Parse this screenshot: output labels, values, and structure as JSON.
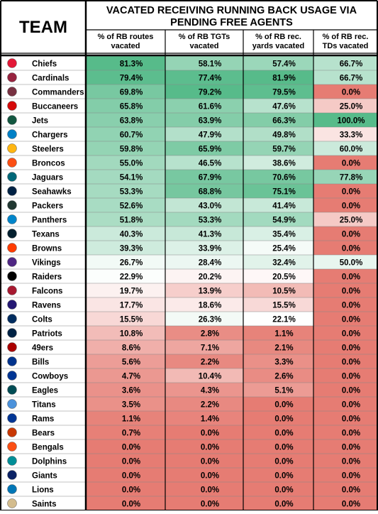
{
  "chart_data": {
    "type": "table",
    "title": "VACATED RECEIVING RUNNING BACK USAGE VIA PENDING FREE AGENTS",
    "title_lines": [
      "VACATED RECEIVING RUNNING BACK USAGE VIA",
      "PENDING FREE AGENTS"
    ],
    "team_header": "TEAM",
    "columns": [
      {
        "key": "routes",
        "lines": [
          "% of RB routes",
          "vacated"
        ]
      },
      {
        "key": "tgts",
        "lines": [
          "% of RB TGTs",
          "vacated"
        ]
      },
      {
        "key": "yards",
        "lines": [
          "% of RB rec.",
          "yards vacated"
        ]
      },
      {
        "key": "tds",
        "lines": [
          "% of RB rec.",
          "TDs vacated"
        ]
      }
    ],
    "rows": [
      {
        "team": "Chiefs",
        "logo_color": "#E31837",
        "routes": "81.3%",
        "tgts": "58.1%",
        "yards": "57.4%",
        "tds": "66.7%"
      },
      {
        "team": "Cardinals",
        "logo_color": "#97233F",
        "routes": "79.4%",
        "tgts": "77.4%",
        "yards": "81.9%",
        "tds": "66.7%"
      },
      {
        "team": "Commanders",
        "logo_color": "#773141",
        "routes": "69.8%",
        "tgts": "79.2%",
        "yards": "79.5%",
        "tds": "0.0%"
      },
      {
        "team": "Buccaneers",
        "logo_color": "#D50A0A",
        "routes": "65.8%",
        "tgts": "61.6%",
        "yards": "47.6%",
        "tds": "25.0%"
      },
      {
        "team": "Jets",
        "logo_color": "#125740",
        "routes": "63.8%",
        "tgts": "63.9%",
        "yards": "66.3%",
        "tds": "100.0%"
      },
      {
        "team": "Chargers",
        "logo_color": "#0080C6",
        "routes": "60.7%",
        "tgts": "47.9%",
        "yards": "49.8%",
        "tds": "33.3%"
      },
      {
        "team": "Steelers",
        "logo_color": "#FFB612",
        "routes": "59.8%",
        "tgts": "65.9%",
        "yards": "59.7%",
        "tds": "60.0%"
      },
      {
        "team": "Broncos",
        "logo_color": "#FB4F14",
        "routes": "55.0%",
        "tgts": "46.5%",
        "yards": "38.6%",
        "tds": "0.0%"
      },
      {
        "team": "Jaguars",
        "logo_color": "#006778",
        "routes": "54.1%",
        "tgts": "67.9%",
        "yards": "70.6%",
        "tds": "77.8%"
      },
      {
        "team": "Seahawks",
        "logo_color": "#002244",
        "routes": "53.3%",
        "tgts": "68.8%",
        "yards": "75.1%",
        "tds": "0.0%"
      },
      {
        "team": "Packers",
        "logo_color": "#203731",
        "routes": "52.6%",
        "tgts": "43.0%",
        "yards": "41.4%",
        "tds": "0.0%"
      },
      {
        "team": "Panthers",
        "logo_color": "#0085CA",
        "routes": "51.8%",
        "tgts": "53.3%",
        "yards": "54.9%",
        "tds": "25.0%"
      },
      {
        "team": "Texans",
        "logo_color": "#03202F",
        "routes": "40.3%",
        "tgts": "41.3%",
        "yards": "35.4%",
        "tds": "0.0%"
      },
      {
        "team": "Browns",
        "logo_color": "#FF3C00",
        "routes": "39.3%",
        "tgts": "33.9%",
        "yards": "25.4%",
        "tds": "0.0%"
      },
      {
        "team": "Vikings",
        "logo_color": "#4F2683",
        "routes": "26.7%",
        "tgts": "28.4%",
        "yards": "32.4%",
        "tds": "50.0%"
      },
      {
        "team": "Raiders",
        "logo_color": "#000000",
        "routes": "22.9%",
        "tgts": "20.2%",
        "yards": "20.5%",
        "tds": "0.0%"
      },
      {
        "team": "Falcons",
        "logo_color": "#A71930",
        "routes": "19.7%",
        "tgts": "13.9%",
        "yards": "10.5%",
        "tds": "0.0%"
      },
      {
        "team": "Ravens",
        "logo_color": "#241773",
        "routes": "17.7%",
        "tgts": "18.6%",
        "yards": "15.5%",
        "tds": "0.0%"
      },
      {
        "team": "Colts",
        "logo_color": "#002C5F",
        "routes": "15.5%",
        "tgts": "26.3%",
        "yards": "22.1%",
        "tds": "0.0%"
      },
      {
        "team": "Patriots",
        "logo_color": "#002244",
        "routes": "10.8%",
        "tgts": "2.8%",
        "yards": "1.1%",
        "tds": "0.0%"
      },
      {
        "team": "49ers",
        "logo_color": "#AA0000",
        "routes": "8.6%",
        "tgts": "7.1%",
        "yards": "2.1%",
        "tds": "0.0%"
      },
      {
        "team": "Bills",
        "logo_color": "#00338D",
        "routes": "5.6%",
        "tgts": "2.2%",
        "yards": "3.3%",
        "tds": "0.0%"
      },
      {
        "team": "Cowboys",
        "logo_color": "#003594",
        "routes": "4.7%",
        "tgts": "10.4%",
        "yards": "2.6%",
        "tds": "0.0%"
      },
      {
        "team": "Eagles",
        "logo_color": "#004C54",
        "routes": "3.6%",
        "tgts": "4.3%",
        "yards": "5.1%",
        "tds": "0.0%"
      },
      {
        "team": "Titans",
        "logo_color": "#4B92DB",
        "routes": "3.5%",
        "tgts": "2.2%",
        "yards": "0.0%",
        "tds": "0.0%"
      },
      {
        "team": "Rams",
        "logo_color": "#003594",
        "routes": "1.1%",
        "tgts": "1.4%",
        "yards": "0.0%",
        "tds": "0.0%"
      },
      {
        "team": "Bears",
        "logo_color": "#C83803",
        "routes": "0.7%",
        "tgts": "0.0%",
        "yards": "0.0%",
        "tds": "0.0%"
      },
      {
        "team": "Bengals",
        "logo_color": "#FB4F14",
        "routes": "0.0%",
        "tgts": "0.0%",
        "yards": "0.0%",
        "tds": "0.0%"
      },
      {
        "team": "Dolphins",
        "logo_color": "#008E97",
        "routes": "0.0%",
        "tgts": "0.0%",
        "yards": "0.0%",
        "tds": "0.0%"
      },
      {
        "team": "Giants",
        "logo_color": "#0B2265",
        "routes": "0.0%",
        "tgts": "0.0%",
        "yards": "0.0%",
        "tds": "0.0%"
      },
      {
        "team": "Lions",
        "logo_color": "#0076B6",
        "routes": "0.0%",
        "tgts": "0.0%",
        "yards": "0.0%",
        "tds": "0.0%"
      },
      {
        "team": "Saints",
        "logo_color": "#D3BC8D",
        "routes": "0.0%",
        "tgts": "0.0%",
        "yards": "0.0%",
        "tds": "0.0%"
      }
    ],
    "color_scale": {
      "low": "#E67C73",
      "mid": "#FFFFFF",
      "high": "#57BB8A"
    },
    "column_midpoints": {
      "routes": 22.0,
      "tgts": 22.1,
      "yards": 21.8,
      "tds": 42.0
    }
  }
}
